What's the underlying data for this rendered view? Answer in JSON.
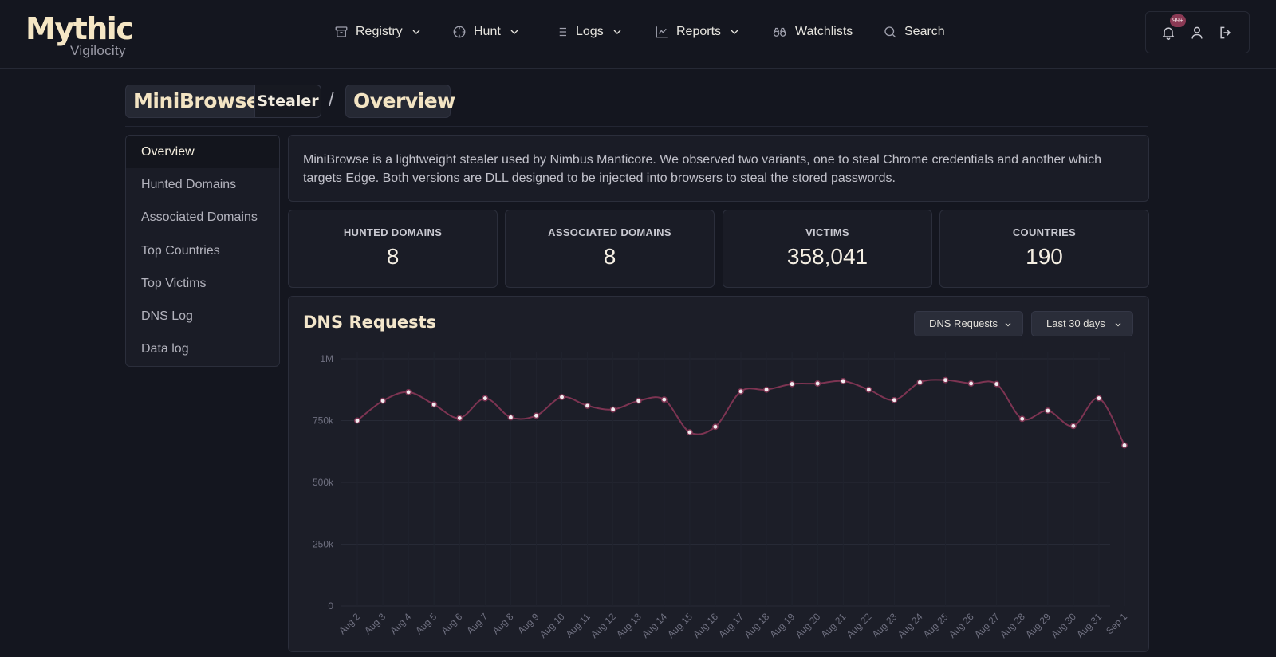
{
  "app": {
    "logo_main": "Mythic",
    "logo_sub": "Vigilocity"
  },
  "nav": {
    "items": [
      {
        "label": "Registry",
        "icon": "archive-icon",
        "dropdown": true
      },
      {
        "label": "Hunt",
        "icon": "crosshair-icon",
        "dropdown": true
      },
      {
        "label": "Logs",
        "icon": "list-icon",
        "dropdown": true
      },
      {
        "label": "Reports",
        "icon": "line-chart-icon",
        "dropdown": true
      },
      {
        "label": "Watchlists",
        "icon": "binoculars-icon",
        "dropdown": false
      },
      {
        "label": "Search",
        "icon": "search-icon",
        "dropdown": false
      }
    ]
  },
  "top_actions": {
    "notifications_badge": "99+"
  },
  "breadcrumb": {
    "name": "MiniBrowse",
    "tag": "Stealer",
    "separator": "/",
    "page": "Overview"
  },
  "sidebar": {
    "items": [
      {
        "label": "Overview",
        "active": true
      },
      {
        "label": "Hunted Domains",
        "active": false
      },
      {
        "label": "Associated Domains",
        "active": false
      },
      {
        "label": "Top Countries",
        "active": false
      },
      {
        "label": "Top Victims",
        "active": false
      },
      {
        "label": "DNS Log",
        "active": false
      },
      {
        "label": "Data log",
        "active": false
      }
    ]
  },
  "description": "MiniBrowse is a lightweight stealer used by Nimbus Manticore. We observed two variants, one to steal Chrome credentials and another which targets Edge. Both versions are DLL designed to be injected into browsers to steal the stored passwords.",
  "stats": [
    {
      "label": "HUNTED DOMAINS",
      "value": "8"
    },
    {
      "label": "ASSOCIATED DOMAINS",
      "value": "8"
    },
    {
      "label": "VICTIMS",
      "value": "358,041"
    },
    {
      "label": "COUNTRIES",
      "value": "190"
    }
  ],
  "chart_card": {
    "title": "DNS Requests",
    "metric_select": "DNS Requests",
    "range_select": "Last 30 days"
  },
  "colors": {
    "accent_line": "#7d3452",
    "badge": "#8a3954",
    "logo": "#f5e6c4"
  },
  "chart_data": {
    "type": "line",
    "title": "DNS Requests",
    "xlabel": "",
    "ylabel": "",
    "categories": [
      "Aug 2",
      "Aug 3",
      "Aug 4",
      "Aug 5",
      "Aug 6",
      "Aug 7",
      "Aug 8",
      "Aug 9",
      "Aug 10",
      "Aug 11",
      "Aug 12",
      "Aug 13",
      "Aug 14",
      "Aug 15",
      "Aug 16",
      "Aug 17",
      "Aug 18",
      "Aug 19",
      "Aug 20",
      "Aug 21",
      "Aug 22",
      "Aug 23",
      "Aug 24",
      "Aug 25",
      "Aug 26",
      "Aug 27",
      "Aug 28",
      "Aug 29",
      "Aug 30",
      "Aug 31",
      "Sep 1"
    ],
    "series": [
      {
        "name": "",
        "values": [
          750000,
          830000,
          865000,
          815000,
          760000,
          840000,
          763000,
          770000,
          845000,
          810000,
          795000,
          830000,
          835000,
          703000,
          725000,
          868000,
          875000,
          898000,
          900000,
          910000,
          875000,
          833000,
          905000,
          914000,
          900000,
          898000,
          757000,
          790000,
          728000,
          840000,
          650000
        ]
      }
    ],
    "y_ticks": [
      "0",
      "250k",
      "500k",
      "750k",
      "1M"
    ],
    "ylim": [
      0,
      1000000
    ],
    "grid": true,
    "legend": "none"
  }
}
